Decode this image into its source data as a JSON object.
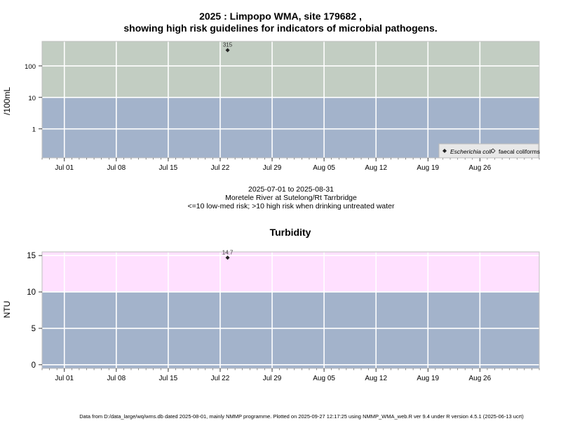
{
  "header": {
    "title_line1": "2025 : Limpopo WMA, site 179682 ,",
    "title_line2": "showing high risk guidelines for indicators of microbial pathogens."
  },
  "caption": {
    "date_range": "2025-07-01 to 2025-08-31",
    "site_name": "Moretele River at Sutelong/Rt Tarrbridge",
    "risk_note": "<=10 low-med risk; >10 high risk when drinking untreated water"
  },
  "footer": {
    "text": "Data from D:/data_large/wq/wms.db dated 2025-08-01, mainly NMMP programme. Plotted on 2025-09-27 12:17:25 using NMMP_WMA_web.R ver 9.4 under R version 4.5.1 (2025-06-13 ucrt)"
  },
  "colors": {
    "low_risk_band": "#a3b3cb",
    "high_risk_band_micro": "#c2cdc2",
    "high_risk_band_turbidity": "#ffe0ff",
    "grid": "#ffffff",
    "point": "#222222"
  },
  "chart_data": [
    {
      "type": "scatter",
      "id": "microbial",
      "title": "",
      "ylabel": "/100mL",
      "y_scale": "log10",
      "ylim": [
        0.12,
        600
      ],
      "xlim": [
        "2025-06-28",
        "2025-09-03"
      ],
      "guideline": 10,
      "x_ticks": [
        "Jul 01",
        "Jul 08",
        "Jul 15",
        "Jul 22",
        "Jul 29",
        "Aug 05",
        "Aug 12",
        "Aug 19",
        "Aug 26"
      ],
      "y_ticks": [
        "1",
        "10",
        "100"
      ],
      "grid": true,
      "legend": {
        "placement": "bottom-right",
        "entries": [
          "Escherichia coli",
          "faecal coliforms"
        ]
      },
      "series": [
        {
          "name": "Escherichia coli",
          "marker": "filled-diamond",
          "points": [
            {
              "x": "2025-07-23",
              "y": 315,
              "label": "315"
            }
          ]
        },
        {
          "name": "faecal coliforms",
          "marker": "open-diamond",
          "points": []
        }
      ]
    },
    {
      "type": "scatter",
      "id": "turbidity",
      "title": "Turbidity",
      "ylabel": "NTU",
      "y_scale": "linear",
      "ylim": [
        -0.5,
        15.5
      ],
      "xlim": [
        "2025-06-28",
        "2025-09-03"
      ],
      "guideline": 10,
      "x_ticks": [
        "Jul 01",
        "Jul 08",
        "Jul 15",
        "Jul 22",
        "Jul 29",
        "Aug 05",
        "Aug 12",
        "Aug 19",
        "Aug 26"
      ],
      "y_ticks": [
        "0",
        "5",
        "10",
        "15"
      ],
      "grid": true,
      "series": [
        {
          "name": "",
          "marker": "filled-diamond",
          "points": [
            {
              "x": "2025-07-23",
              "y": 14.7,
              "label": "14.7"
            }
          ]
        }
      ]
    }
  ]
}
